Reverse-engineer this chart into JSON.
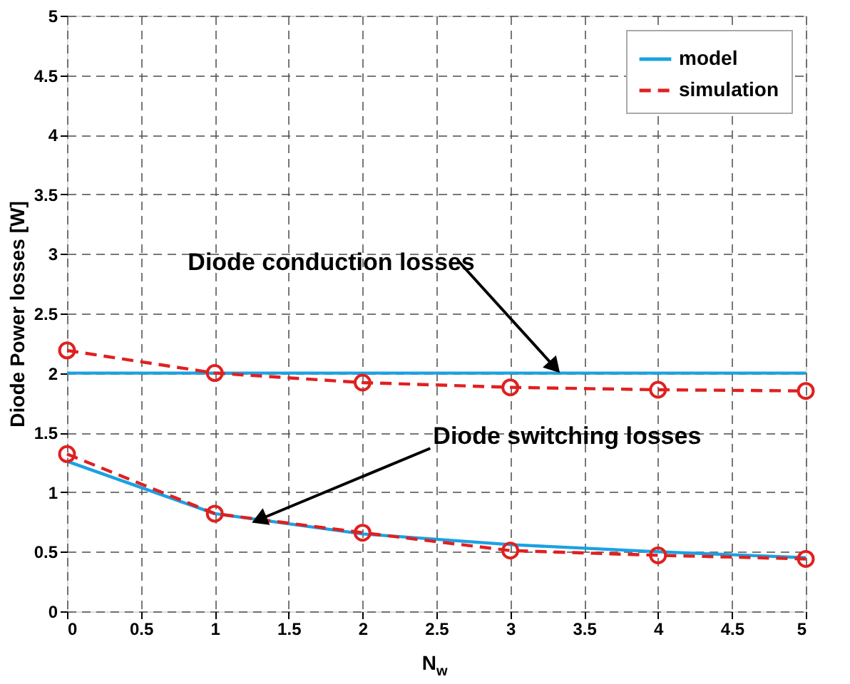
{
  "chart_data": {
    "type": "line",
    "xlabel": "N$_{w}$",
    "ylabel": "Diode Power losses [W]",
    "x": [
      0,
      1,
      2,
      3,
      4,
      5
    ],
    "series": [
      {
        "name": "model",
        "color": "#1ba1e2",
        "line_style": "solid",
        "marker": "none",
        "values": [
          2,
          2,
          2,
          2,
          2,
          2
        ]
      },
      {
        "name": "simulation",
        "color": "#e02020",
        "line_style": "dashed",
        "marker": "circle",
        "values": [
          2.19,
          2.0,
          1.92,
          1.88,
          1.86,
          1.85
        ]
      },
      {
        "color": "#1ba1e2",
        "line_style": "solid",
        "marker": "none",
        "values": [
          1.26,
          0.82,
          0.65,
          0.56,
          0.5,
          0.45
        ]
      },
      {
        "color": "#e02020",
        "line_style": "dashed",
        "marker": "circle",
        "values": [
          1.32,
          0.82,
          0.66,
          0.51,
          0.47,
          0.44
        ]
      }
    ],
    "annotations": [
      {
        "text": "Diode conduction losses",
        "x": 3.3,
        "y": 2.05
      },
      {
        "text": "Diode switching losses",
        "x": 1.3,
        "y": 0.77
      }
    ],
    "xlim": [
      0,
      5
    ],
    "ylim": [
      0,
      5
    ],
    "xticks": [
      0,
      0.5,
      1,
      1.5,
      2,
      2.5,
      3,
      3.5,
      4,
      4.5,
      5
    ],
    "yticks": [
      0,
      0.5,
      1,
      1.5,
      2,
      2.5,
      3,
      3.5,
      4,
      4.5,
      5
    ],
    "grid": true,
    "legend": "top right"
  }
}
